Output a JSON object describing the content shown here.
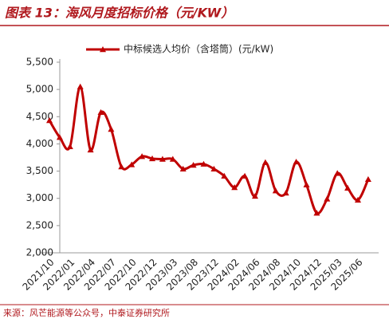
{
  "chart_data": {
    "type": "line",
    "title": "图表 13：海风月度招标价格（元/KW）",
    "source": "来源：风芒能源等公众号，中泰证券研究所",
    "categories": [
      "2021/10",
      null,
      "2022/01",
      null,
      "2022/04",
      null,
      "2022/07",
      null,
      "2022/10",
      null,
      "2022/12",
      null,
      "2023/03",
      null,
      "2023/08",
      null,
      "2023/12",
      null,
      "2024/02",
      null,
      "2024/06",
      null,
      "2024/08",
      null,
      "2024/10",
      null,
      "2024/12",
      null,
      "2025/03",
      null,
      "2025/06",
      null
    ],
    "series": [
      {
        "name": "中标候选人均价（含塔筒）(元/kW)",
        "color": "#c00000",
        "values": [
          4430,
          4120,
          3950,
          5050,
          3890,
          4580,
          4270,
          3580,
          3620,
          3770,
          3730,
          3720,
          3720,
          3540,
          3610,
          3630,
          3540,
          3410,
          3200,
          3410,
          3040,
          3660,
          3140,
          3100,
          3670,
          3250,
          2730,
          2990,
          3460,
          3190,
          2970,
          3350
        ]
      }
    ],
    "ylim": [
      2000,
      5500
    ],
    "yticks": [
      {
        "value": 2000,
        "label": "2,000"
      },
      {
        "value": 2500,
        "label": "2,500"
      },
      {
        "value": 3000,
        "label": "3,000"
      },
      {
        "value": 3500,
        "label": "3,500"
      },
      {
        "value": 4000,
        "label": "4,000"
      },
      {
        "value": 4500,
        "label": "4,500"
      },
      {
        "value": 5000,
        "label": "5,000"
      },
      {
        "value": 5500,
        "label": "5,500"
      }
    ],
    "legend": "top"
  }
}
